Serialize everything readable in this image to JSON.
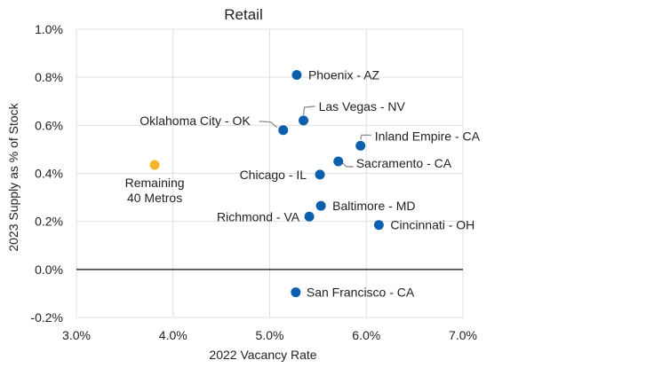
{
  "chart_data": {
    "type": "scatter",
    "title": "Retail",
    "xlabel": "2022 Vacancy Rate",
    "ylabel": "2023 Supply as % of Stock",
    "xlim": [
      3.0,
      7.0
    ],
    "ylim": [
      -0.2,
      1.0
    ],
    "x_ticks": [
      "3.0%",
      "4.0%",
      "5.0%",
      "6.0%",
      "7.0%"
    ],
    "y_ticks": [
      "1.0%",
      "0.8%",
      "0.6%",
      "0.4%",
      "0.2%",
      "0.0%",
      "-0.2%"
    ],
    "grid": true,
    "zero_line": true,
    "colors": {
      "metro": "#0b5fad",
      "remaining": "#f7b728",
      "leader": "#8c8c8c",
      "grid": "#e0e0e0",
      "zero": "#333333"
    },
    "points": [
      {
        "label": "Phoenix - AZ",
        "x": 5.28,
        "y": 0.81,
        "group": "metro"
      },
      {
        "label": "Las Vegas - NV",
        "x": 5.35,
        "y": 0.62,
        "group": "metro"
      },
      {
        "label": "Oklahoma City - OK",
        "x": 5.14,
        "y": 0.58,
        "group": "metro"
      },
      {
        "label": "Inland Empire - CA",
        "x": 5.94,
        "y": 0.515,
        "group": "metro"
      },
      {
        "label": "Sacramento - CA",
        "x": 5.71,
        "y": 0.45,
        "group": "metro"
      },
      {
        "label": "Chicago - IL",
        "x": 5.52,
        "y": 0.395,
        "group": "metro"
      },
      {
        "label": "Baltimore - MD",
        "x": 5.53,
        "y": 0.265,
        "group": "metro"
      },
      {
        "label": "Richmond - VA",
        "x": 5.41,
        "y": 0.22,
        "group": "metro"
      },
      {
        "label": "Cincinnati - OH",
        "x": 6.13,
        "y": 0.185,
        "group": "metro"
      },
      {
        "label": "San Francisco - CA",
        "x": 5.27,
        "y": -0.095,
        "group": "metro"
      },
      {
        "label": "Remaining 40 Metros",
        "x": 3.81,
        "y": 0.435,
        "group": "remaining"
      }
    ]
  }
}
